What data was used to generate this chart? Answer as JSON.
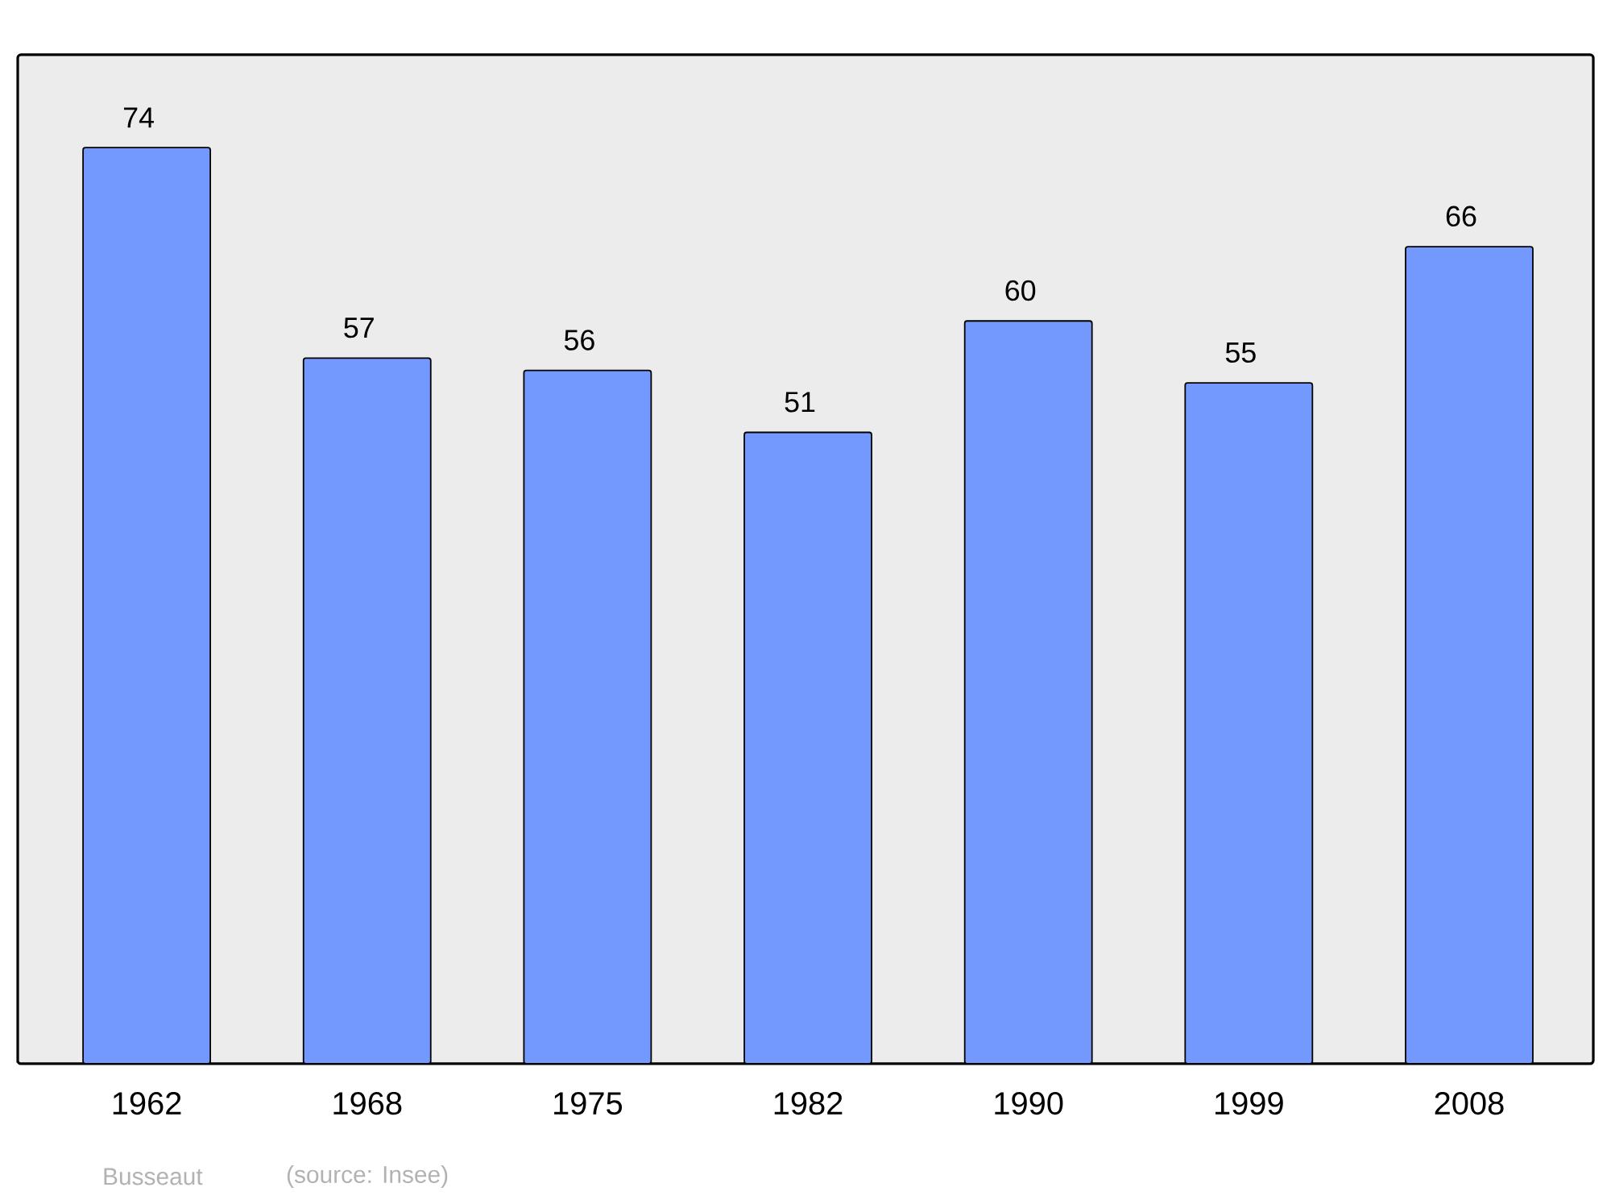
{
  "chart_data": {
    "type": "bar",
    "title": "Busseaut",
    "annotations": [
      "(source: Insee)"
    ],
    "categories": [
      "1962",
      "1968",
      "1975",
      "1982",
      "1990",
      "1999",
      "2008"
    ],
    "values": [
      74,
      57,
      56,
      51,
      60,
      55,
      66
    ],
    "color": "#7399ff",
    "data_labels": true,
    "ylim": [
      0,
      81.5
    ]
  }
}
